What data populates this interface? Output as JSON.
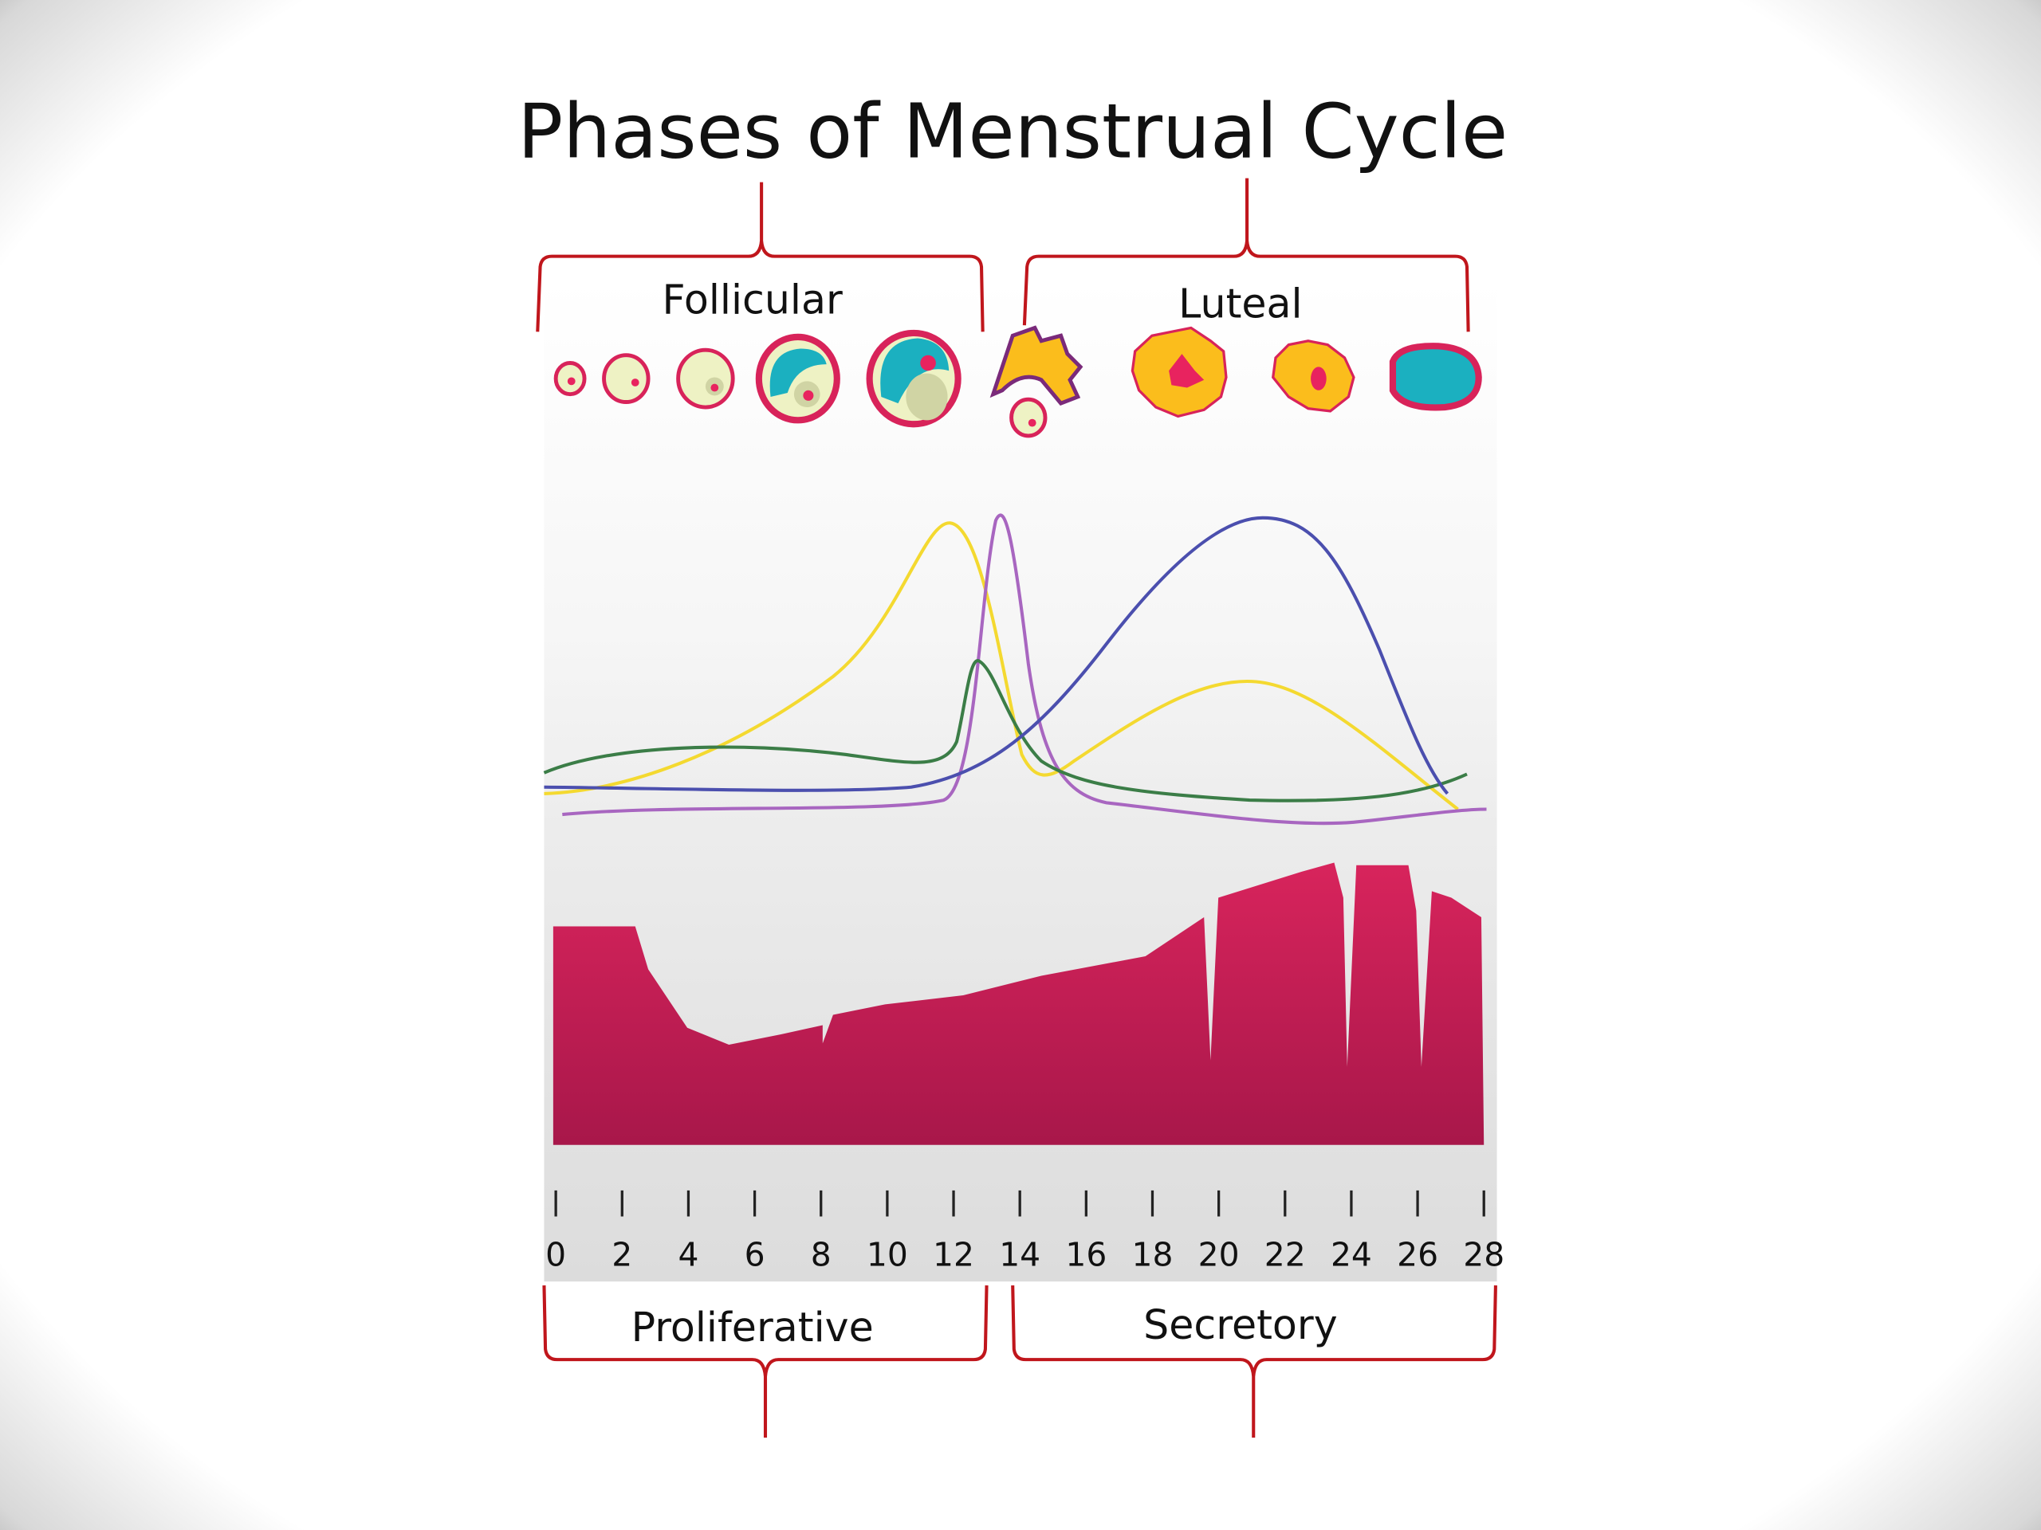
{
  "title": "Phases of Menstrual Cycle",
  "ovarian_phases": [
    {
      "label": "Follicular"
    },
    {
      "label": "Luteal"
    }
  ],
  "uterine_phases": [
    {
      "label": "Proliferative"
    },
    {
      "label": "Secretory"
    }
  ],
  "x_axis": {
    "ticks": [
      "0",
      "2",
      "4",
      "6",
      "8",
      "10",
      "12",
      "14",
      "16",
      "18",
      "20",
      "22",
      "24",
      "26",
      "28"
    ]
  },
  "colors": {
    "brace": "#c0161c",
    "endometrium": "#d4225a",
    "curve_yellow": "#f4d930",
    "curve_purple": "#a866c0",
    "curve_green": "#3b7d47",
    "curve_blue": "#4b4fae",
    "follicle_fill": "#eef2c4",
    "follicle_ring": "#d8235a",
    "antrum": "#1bb0c0",
    "corpus_luteum": "#fbbd1c"
  },
  "icons": [
    "follicle",
    "ovulation",
    "corpus-luteum",
    "corpus-albicans"
  ]
}
